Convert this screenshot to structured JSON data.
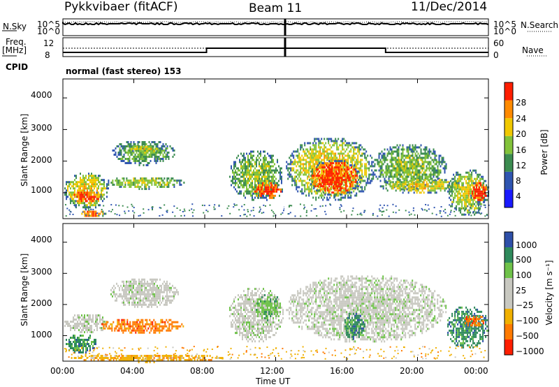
{
  "header": {
    "station": "Pykkvibaer (fitACF)",
    "beam": "Beam 11",
    "date": "11/Dec/2014"
  },
  "param_panels": {
    "nsky_label": "N.Sky",
    "nsearch_label": "N.Search",
    "freq_label_1": "Freq.",
    "freq_label_2": "[MHz]",
    "nave_label": "Nave",
    "cpid_label": "CPID",
    "cpid_value": "normal (fast stereo) 153",
    "noise_left_ticks": [
      "10^5",
      "10^0"
    ],
    "noise_right_ticks": [
      "10^5",
      "10^0"
    ],
    "freq_left_ticks": [
      "12",
      "8"
    ],
    "nave_right_ticks": [
      "60",
      "0"
    ]
  },
  "chart_data": [
    {
      "type": "heatmap",
      "title": "",
      "xlabel": "Time UT",
      "ylabel": "Slant Range [km]",
      "xlim": [
        0,
        24
      ],
      "ylim": [
        180,
        4600
      ],
      "x_ticks": [
        "00:00",
        "04:00",
        "08:00",
        "12:00",
        "16:00",
        "20:00",
        "00:00"
      ],
      "y_ticks": [
        "1000",
        "2000",
        "3000",
        "4000"
      ],
      "colorbar": {
        "label": "Power [dB]",
        "ticks": [
          "4",
          "8",
          "12",
          "16",
          "20",
          "24",
          "28"
        ],
        "range": [
          0,
          30
        ],
        "colors": [
          "#1a1aff",
          "#2f55b0",
          "#3c8c50",
          "#82c23a",
          "#f0c800",
          "#ff8a00",
          "#ff1e00"
        ]
      },
      "blobs": [
        {
          "t0": 0.0,
          "t1": 2.6,
          "r0": 500,
          "r1": 1700,
          "v": 18
        },
        {
          "t0": 0.3,
          "t1": 2.2,
          "r0": 700,
          "r1": 1100,
          "v": 27
        },
        {
          "t0": 2.3,
          "t1": 6.8,
          "r0": 1150,
          "r1": 1550,
          "v": 15
        },
        {
          "t0": 2.7,
          "t1": 6.3,
          "r0": 1900,
          "r1": 2700,
          "v": 12
        },
        {
          "t0": 3.6,
          "t1": 5.6,
          "r0": 2300,
          "r1": 2550,
          "v": 17
        },
        {
          "t0": 0.8,
          "t1": 2.4,
          "r0": 250,
          "r1": 500,
          "v": 24
        },
        {
          "t0": 9.3,
          "t1": 12.4,
          "r0": 800,
          "r1": 2400,
          "v": 14
        },
        {
          "t0": 10.6,
          "t1": 12.4,
          "r0": 800,
          "r1": 1400,
          "v": 26
        },
        {
          "t0": 12.5,
          "t1": 17.6,
          "r0": 750,
          "r1": 2800,
          "v": 18
        },
        {
          "t0": 13.8,
          "t1": 16.8,
          "r0": 900,
          "r1": 2100,
          "v": 27
        },
        {
          "t0": 17.4,
          "t1": 21.6,
          "r0": 1100,
          "r1": 2600,
          "v": 13
        },
        {
          "t0": 17.8,
          "t1": 22.6,
          "r0": 1000,
          "r1": 1500,
          "v": 17
        },
        {
          "t0": 21.6,
          "t1": 24.0,
          "r0": 300,
          "r1": 1800,
          "v": 16
        },
        {
          "t0": 22.9,
          "t1": 24.0,
          "r0": 700,
          "r1": 1400,
          "v": 28
        }
      ]
    },
    {
      "type": "heatmap",
      "title": "",
      "xlabel": "Time UT",
      "ylabel": "Slant Range [km]",
      "xlim": [
        0,
        24
      ],
      "ylim": [
        180,
        4600
      ],
      "x_ticks": [
        "00:00",
        "04:00",
        "08:00",
        "12:00",
        "16:00",
        "20:00",
        "00:00"
      ],
      "y_ticks": [
        "1000",
        "2000",
        "3000",
        "4000"
      ],
      "colorbar": {
        "label": "Velocity [m s⁻¹]",
        "ticks": [
          "1000",
          "500",
          "100",
          "25",
          "−25",
          "−100",
          "−500",
          "−1000"
        ],
        "colors": [
          "#2e4fa8",
          "#2f8a5c",
          "#6fc24a",
          "#c8c8c0",
          "#c8c8c0",
          "#f0b000",
          "#ff7a00",
          "#ff1e00"
        ]
      },
      "blobs": [
        {
          "t0": 0.0,
          "t1": 1.9,
          "r0": 450,
          "r1": 1100,
          "c": 1
        },
        {
          "t0": 0.0,
          "t1": 2.6,
          "r0": 1100,
          "r1": 1750,
          "c": 3
        },
        {
          "t0": 2.1,
          "t1": 6.8,
          "r0": 1100,
          "r1": 1600,
          "c": 6
        },
        {
          "t0": 2.6,
          "t1": 6.5,
          "r0": 1900,
          "r1": 2900,
          "c": 3
        },
        {
          "t0": 0.3,
          "t1": 9.0,
          "r0": 180,
          "r1": 450,
          "c": 5
        },
        {
          "t0": 9.3,
          "t1": 12.4,
          "r0": 800,
          "r1": 2600,
          "c": 3
        },
        {
          "t0": 10.8,
          "t1": 12.3,
          "r0": 1500,
          "r1": 2400,
          "c": 2
        },
        {
          "t0": 12.5,
          "t1": 21.6,
          "r0": 800,
          "r1": 3000,
          "c": 3
        },
        {
          "t0": 15.8,
          "t1": 17.0,
          "r0": 900,
          "r1": 1800,
          "c": 1
        },
        {
          "t0": 21.6,
          "t1": 24.0,
          "r0": 600,
          "r1": 2000,
          "c": 1
        },
        {
          "t0": 22.5,
          "t1": 23.8,
          "r0": 1300,
          "r1": 1700,
          "c": 6
        }
      ]
    }
  ]
}
